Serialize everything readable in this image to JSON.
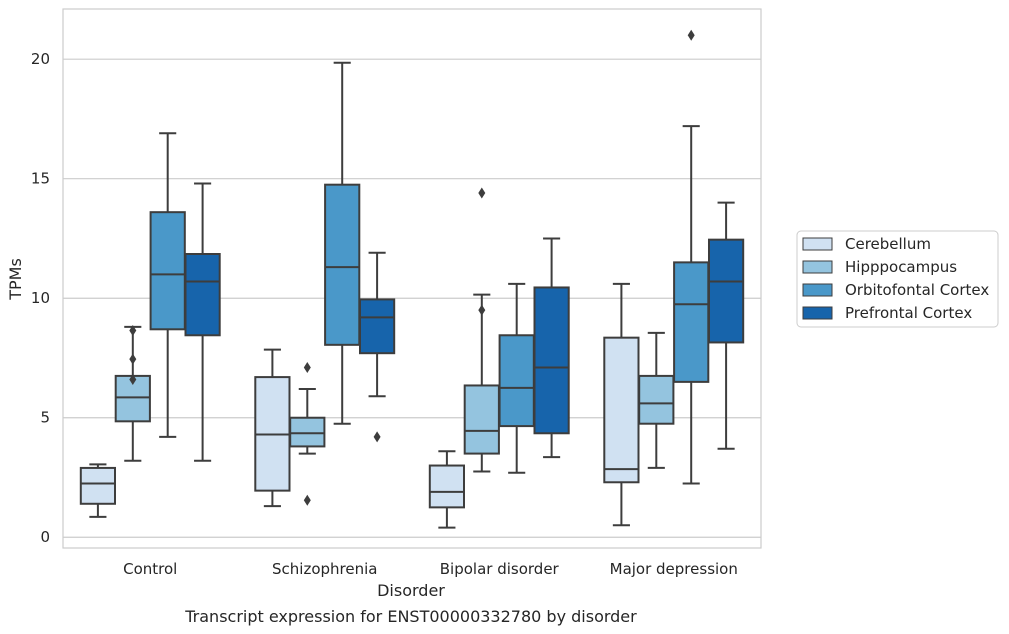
{
  "chart_data": {
    "type": "box",
    "xlabel": "Disorder",
    "ylabel": "TPMs",
    "caption": "Transcript expression for ENST00000332780 by disorder",
    "categories": [
      "Control",
      "Schizophrenia",
      "Bipolar disorder",
      "Major depression"
    ],
    "ylim": [
      -0.45,
      22.1
    ],
    "yticks": [
      0,
      5,
      10,
      15,
      20
    ],
    "grid": "horizontal",
    "legend_position": "right",
    "series": [
      {
        "name": "Cerebellum",
        "color": "#d0e1f2",
        "boxes": [
          {
            "whisker_low": 0.85,
            "q1": 1.4,
            "median": 2.25,
            "q3": 2.9,
            "whisker_high": 3.05,
            "outliers": []
          },
          {
            "whisker_low": 1.3,
            "q1": 1.95,
            "median": 4.3,
            "q3": 6.7,
            "whisker_high": 7.85,
            "outliers": []
          },
          {
            "whisker_low": 0.4,
            "q1": 1.25,
            "median": 1.9,
            "q3": 3.0,
            "whisker_high": 3.6,
            "outliers": []
          },
          {
            "whisker_low": 0.5,
            "q1": 2.3,
            "median": 2.85,
            "q3": 8.35,
            "whisker_high": 10.6,
            "outliers": []
          }
        ]
      },
      {
        "name": "Hipppocampus",
        "color": "#94c4df",
        "boxes": [
          {
            "whisker_low": 3.2,
            "q1": 4.85,
            "median": 5.85,
            "q3": 6.75,
            "whisker_high": 8.8,
            "outliers": [
              6.6,
              7.45,
              8.65
            ]
          },
          {
            "whisker_low": 3.5,
            "q1": 3.8,
            "median": 4.35,
            "q3": 5.0,
            "whisker_high": 6.2,
            "outliers": [
              1.55,
              7.1
            ]
          },
          {
            "whisker_low": 2.75,
            "q1": 3.5,
            "median": 4.45,
            "q3": 6.35,
            "whisker_high": 10.15,
            "outliers": [
              9.5,
              14.4
            ]
          },
          {
            "whisker_low": 2.9,
            "q1": 4.75,
            "median": 5.6,
            "q3": 6.75,
            "whisker_high": 8.55,
            "outliers": []
          }
        ]
      },
      {
        "name": "Orbitofontal Cortex",
        "color": "#4a98c9",
        "boxes": [
          {
            "whisker_low": 4.2,
            "q1": 8.7,
            "median": 11.0,
            "q3": 13.6,
            "whisker_high": 16.9,
            "outliers": []
          },
          {
            "whisker_low": 4.75,
            "q1": 8.05,
            "median": 11.3,
            "q3": 14.75,
            "whisker_high": 19.85,
            "outliers": []
          },
          {
            "whisker_low": 2.7,
            "q1": 4.65,
            "median": 6.25,
            "q3": 8.45,
            "whisker_high": 10.6,
            "outliers": []
          },
          {
            "whisker_low": 2.25,
            "q1": 6.5,
            "median": 9.75,
            "q3": 11.5,
            "whisker_high": 17.2,
            "outliers": [
              21.0
            ]
          }
        ]
      },
      {
        "name": "Prefrontal Cortex",
        "color": "#1764ab",
        "boxes": [
          {
            "whisker_low": 3.2,
            "q1": 8.45,
            "median": 10.7,
            "q3": 11.85,
            "whisker_high": 14.8,
            "outliers": []
          },
          {
            "whisker_low": 5.9,
            "q1": 7.7,
            "median": 9.2,
            "q3": 9.95,
            "whisker_high": 11.9,
            "outliers": [
              4.2
            ]
          },
          {
            "whisker_low": 3.35,
            "q1": 4.35,
            "median": 7.1,
            "q3": 10.45,
            "whisker_high": 12.5,
            "outliers": []
          },
          {
            "whisker_low": 3.7,
            "q1": 8.15,
            "median": 10.7,
            "q3": 12.45,
            "whisker_high": 14.0,
            "outliers": []
          }
        ]
      }
    ]
  }
}
